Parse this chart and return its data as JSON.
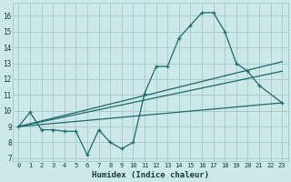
{
  "xlabel": "Humidex (Indice chaleur)",
  "bg_color": "#cce8e8",
  "grid_color": "#aacccc",
  "line_color": "#1a6b6b",
  "xlim": [
    -0.5,
    23.5
  ],
  "ylim": [
    6.8,
    16.8
  ],
  "xticks": [
    0,
    1,
    2,
    3,
    4,
    5,
    6,
    7,
    8,
    9,
    10,
    11,
    12,
    13,
    14,
    15,
    16,
    17,
    18,
    19,
    20,
    21,
    22,
    23
  ],
  "yticks": [
    7,
    8,
    9,
    10,
    11,
    12,
    13,
    14,
    15,
    16
  ],
  "series1_x": [
    0,
    1,
    2,
    3,
    4,
    5,
    6,
    7,
    8,
    9,
    10,
    11,
    12,
    13,
    14,
    15,
    16,
    17,
    18,
    19,
    20,
    21,
    23
  ],
  "series1_y": [
    9.0,
    9.9,
    8.8,
    8.8,
    8.7,
    8.7,
    7.2,
    8.8,
    8.0,
    7.6,
    8.0,
    11.1,
    12.8,
    12.8,
    14.6,
    15.4,
    16.2,
    16.2,
    15.0,
    13.0,
    12.5,
    11.6,
    10.5
  ],
  "series2_x": [
    0,
    23
  ],
  "series2_y": [
    9.0,
    10.5
  ],
  "series3_x": [
    0,
    23
  ],
  "series3_y": [
    9.0,
    12.5
  ],
  "series4_x": [
    0,
    23
  ],
  "series4_y": [
    9.0,
    13.1
  ]
}
